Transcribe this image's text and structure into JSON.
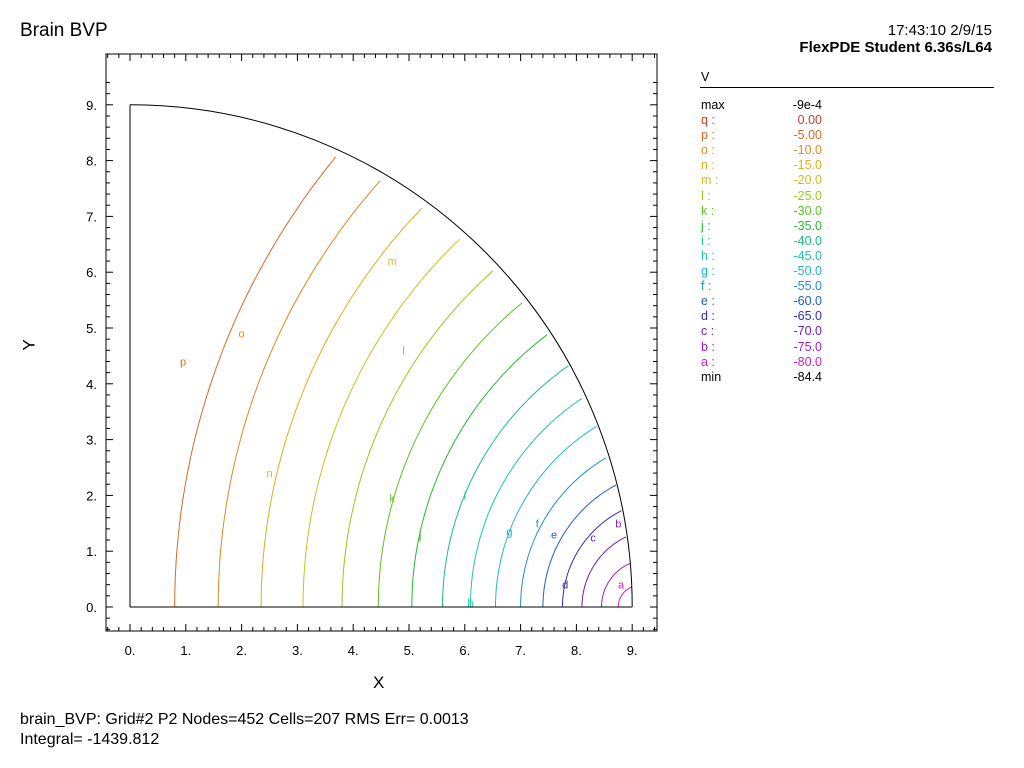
{
  "header": {
    "title": "Brain BVP",
    "timestamp": "17:43:10 2/9/15",
    "version": "FlexPDE Student 6.36s/L64"
  },
  "footer": {
    "line1": "brain_BVP:  Grid#2  P2  Nodes=452 Cells=207 RMS Err= 0.0013",
    "line2": "Integral= -1439.812"
  },
  "legend": {
    "variable": "V",
    "max_label": "max",
    "max_value": "-9e-4",
    "min_label": "min",
    "min_value": "-84.4",
    "levels": [
      {
        "key": "q :",
        "value": "0.00",
        "color": "#cc3b1f"
      },
      {
        "key": "p :",
        "value": "-5.00",
        "color": "#d96a25"
      },
      {
        "key": "o :",
        "value": "-10.0",
        "color": "#de8a1d"
      },
      {
        "key": "n :",
        "value": "-15.0",
        "color": "#deae1e"
      },
      {
        "key": "m :",
        "value": "-20.0",
        "color": "#c9c21e"
      },
      {
        "key": "l :",
        "value": "-25.0",
        "color": "#98c81e"
      },
      {
        "key": "k :",
        "value": "-30.0",
        "color": "#5ec21e"
      },
      {
        "key": "j :",
        "value": "-35.0",
        "color": "#29b92c"
      },
      {
        "key": "i :",
        "value": "-40.0",
        "color": "#1cbf7e"
      },
      {
        "key": "h :",
        "value": "-45.0",
        "color": "#1ec6b0"
      },
      {
        "key": "g :",
        "value": "-50.0",
        "color": "#1eb7cf"
      },
      {
        "key": "f :",
        "value": "-55.0",
        "color": "#1e8ecf"
      },
      {
        "key": "e :",
        "value": "-60.0",
        "color": "#1e5fc8"
      },
      {
        "key": "d :",
        "value": "-65.0",
        "color": "#3030b8"
      },
      {
        "key": "c :",
        "value": "-70.0",
        "color": "#6a1ec8"
      },
      {
        "key": "b :",
        "value": "-75.0",
        "color": "#9b1ec8"
      },
      {
        "key": "a :",
        "value": "-80.0",
        "color": "#c81ec0"
      }
    ]
  },
  "chart_data": {
    "type": "contour",
    "xlabel": "X",
    "ylabel": "Y",
    "xlim": [
      0,
      9
    ],
    "ylim": [
      0,
      9
    ],
    "domain": "quarter disk, radius 9",
    "x_ticks": [
      "0.",
      "1.",
      "2.",
      "3.",
      "4.",
      "5.",
      "6.",
      "7.",
      "8.",
      "9."
    ],
    "y_ticks": [
      "0.",
      "1.",
      "2.",
      "3.",
      "4.",
      "5.",
      "6.",
      "7.",
      "8.",
      "9."
    ],
    "contours": [
      {
        "label": "p",
        "value": -5,
        "x_at_y0": 0.8,
        "label_pos": [
          0.95,
          4.4
        ]
      },
      {
        "label": "o",
        "value": -10,
        "x_at_y0": 1.58,
        "label_pos": [
          2.0,
          4.9
        ]
      },
      {
        "label": "n",
        "value": -15,
        "x_at_y0": 2.35,
        "label_pos": [
          2.5,
          2.4
        ]
      },
      {
        "label": "m",
        "value": -20,
        "x_at_y0": 3.1,
        "label_pos": [
          4.7,
          6.2
        ]
      },
      {
        "label": "l",
        "value": -25,
        "x_at_y0": 3.8,
        "label_pos": [
          4.9,
          4.6
        ]
      },
      {
        "label": "k",
        "value": -30,
        "x_at_y0": 4.45,
        "label_pos": [
          4.7,
          1.95
        ]
      },
      {
        "label": "j",
        "value": -35,
        "x_at_y0": 5.05,
        "label_pos": [
          5.2,
          1.3
        ]
      },
      {
        "label": "i",
        "value": -40,
        "x_at_y0": 5.6,
        "label_pos": [
          6.0,
          2.0
        ]
      },
      {
        "label": "h",
        "value": -45,
        "x_at_y0": 6.1,
        "label_pos": [
          6.1,
          0.08
        ]
      },
      {
        "label": "g",
        "value": -50,
        "x_at_y0": 6.55,
        "label_pos": [
          6.8,
          1.35
        ]
      },
      {
        "label": "f",
        "value": -55,
        "x_at_y0": 7.0,
        "label_pos": [
          7.3,
          1.5
        ]
      },
      {
        "label": "e",
        "value": -60,
        "x_at_y0": 7.4,
        "label_pos": [
          7.6,
          1.3
        ]
      },
      {
        "label": "d",
        "value": -65,
        "x_at_y0": 7.75,
        "label_pos": [
          7.8,
          0.4
        ]
      },
      {
        "label": "c",
        "value": -70,
        "x_at_y0": 8.1,
        "label_pos": [
          8.3,
          1.25
        ]
      },
      {
        "label": "b",
        "value": -75,
        "x_at_y0": 8.45,
        "label_pos": [
          8.75,
          1.5
        ]
      },
      {
        "label": "a",
        "value": -80,
        "x_at_y0": 8.75,
        "label_pos": [
          8.8,
          0.4
        ]
      }
    ]
  }
}
